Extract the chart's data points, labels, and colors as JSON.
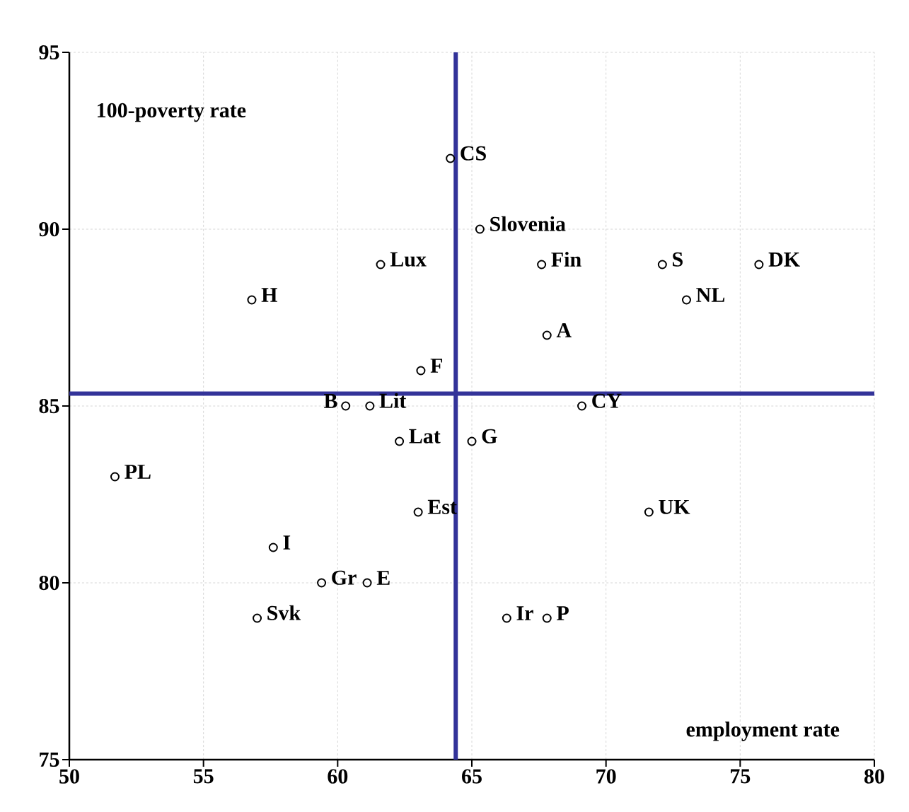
{
  "chart_data": {
    "type": "scatter",
    "xlabel": "employment rate",
    "ylabel": "100-poverty rate",
    "x": [
      64.2,
      65.3,
      61.6,
      67.6,
      72.1,
      75.7,
      56.8,
      73.0,
      67.8,
      63.1,
      60.3,
      61.2,
      69.1,
      62.3,
      65.0,
      51.7,
      63.0,
      71.6,
      57.6,
      59.4,
      61.1,
      57.0,
      66.3,
      67.8
    ],
    "values": [
      92,
      90,
      89,
      89,
      89,
      89,
      88,
      88,
      87,
      86,
      85,
      85,
      85,
      84,
      84,
      83,
      82,
      82,
      81,
      80,
      80,
      79,
      79,
      79
    ],
    "color": "#000000",
    "marker": "circle",
    "grid": true,
    "xlim": [
      50,
      80
    ],
    "ylim": [
      75,
      95
    ],
    "xticks": [
      50,
      55,
      60,
      65,
      70,
      75,
      80
    ],
    "yticks": [
      75,
      80,
      85,
      90,
      95
    ],
    "ref_lines": [
      {
        "axis": "x",
        "value": 64.4,
        "color": "#333399"
      },
      {
        "axis": "y",
        "value": 85.35,
        "color": "#333399"
      }
    ],
    "annotations": [
      {
        "text": "CS",
        "x": 64.2,
        "y": 92
      },
      {
        "text": "Slovenia",
        "x": 65.3,
        "y": 90
      },
      {
        "text": "Lux",
        "x": 61.6,
        "y": 89
      },
      {
        "text": "Fin",
        "x": 67.6,
        "y": 89
      },
      {
        "text": "S",
        "x": 72.1,
        "y": 89
      },
      {
        "text": "DK",
        "x": 75.7,
        "y": 89
      },
      {
        "text": "H",
        "x": 56.8,
        "y": 88
      },
      {
        "text": "NL",
        "x": 73.0,
        "y": 88
      },
      {
        "text": "A",
        "x": 67.8,
        "y": 87
      },
      {
        "text": "F",
        "x": 63.1,
        "y": 86
      },
      {
        "text": "B",
        "x": 60.3,
        "y": 85
      },
      {
        "text": "Lit",
        "x": 61.2,
        "y": 85
      },
      {
        "text": "CY",
        "x": 69.1,
        "y": 85
      },
      {
        "text": "Lat",
        "x": 62.3,
        "y": 84
      },
      {
        "text": "G",
        "x": 65.0,
        "y": 84
      },
      {
        "text": "PL",
        "x": 51.7,
        "y": 83
      },
      {
        "text": "Est",
        "x": 63.0,
        "y": 82
      },
      {
        "text": "UK",
        "x": 71.6,
        "y": 82
      },
      {
        "text": "I",
        "x": 57.6,
        "y": 81
      },
      {
        "text": "Gr",
        "x": 59.4,
        "y": 80
      },
      {
        "text": "E",
        "x": 61.1,
        "y": 80
      },
      {
        "text": "Svk",
        "x": 57.0,
        "y": 79
      },
      {
        "text": "Ir",
        "x": 66.3,
        "y": 79
      },
      {
        "text": "P",
        "x": 67.8,
        "y": 79
      }
    ]
  }
}
